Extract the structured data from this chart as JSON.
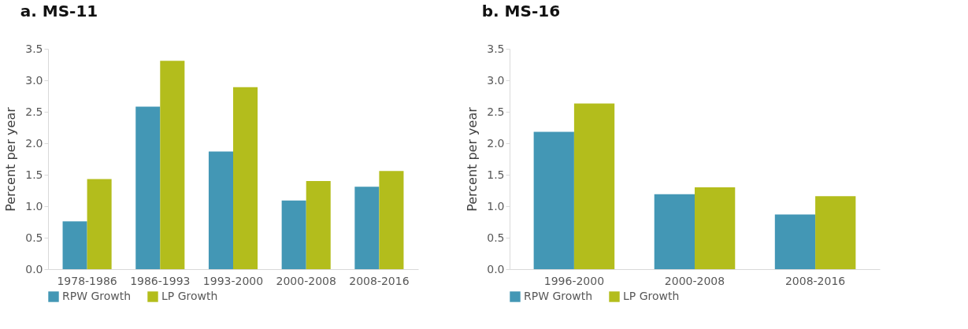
{
  "chart_data": [
    {
      "type": "bar",
      "title": "a.   MS-11",
      "ylabel": "Percent per year",
      "categories": [
        "1978-1986",
        "1986-1993",
        "1993-2000",
        "2000-2008",
        "2008-2016"
      ],
      "ylim": [
        0,
        3.5
      ],
      "yticks": [
        {
          "value": 0,
          "label": "0.0"
        },
        {
          "value": 0.5,
          "label": "0.5"
        },
        {
          "value": 1,
          "label": "1.0"
        },
        {
          "value": 1.5,
          "label": "1.5"
        },
        {
          "value": 2,
          "label": "2.0"
        },
        {
          "value": 2.5,
          "label": "2.5"
        },
        {
          "value": 3,
          "label": "3.0"
        },
        {
          "value": 3.5,
          "label": "3.5"
        }
      ],
      "grid": false,
      "legend": "bottom",
      "series": [
        {
          "name": "RPW Growth",
          "color": "#4397b5",
          "values": [
            0.76,
            2.58,
            1.87,
            1.09,
            1.31
          ]
        },
        {
          "name": "LP Growth",
          "color": "#b3bd1c",
          "values": [
            1.43,
            3.31,
            2.89,
            1.4,
            1.56
          ]
        }
      ]
    },
    {
      "type": "bar",
      "title": "b.   MS-16",
      "ylabel": "Percent per year",
      "categories": [
        "1996-2000",
        "2000-2008",
        "2008-2016"
      ],
      "ylim": [
        0,
        3.5
      ],
      "yticks": [
        {
          "value": 0,
          "label": "0.0"
        },
        {
          "value": 0.5,
          "label": "0.5"
        },
        {
          "value": 1,
          "label": "1.0"
        },
        {
          "value": 1.5,
          "label": "1.5"
        },
        {
          "value": 2,
          "label": "2.0"
        },
        {
          "value": 2.5,
          "label": "2.5"
        },
        {
          "value": 3,
          "label": "3.0"
        },
        {
          "value": 3.5,
          "label": "3.5"
        }
      ],
      "grid": false,
      "legend": "bottom",
      "series": [
        {
          "name": "RPW Growth",
          "color": "#4397b5",
          "values": [
            2.18,
            1.19,
            0.87
          ]
        },
        {
          "name": "LP Growth",
          "color": "#b3bd1c",
          "values": [
            2.63,
            1.3,
            1.16
          ]
        }
      ]
    }
  ]
}
